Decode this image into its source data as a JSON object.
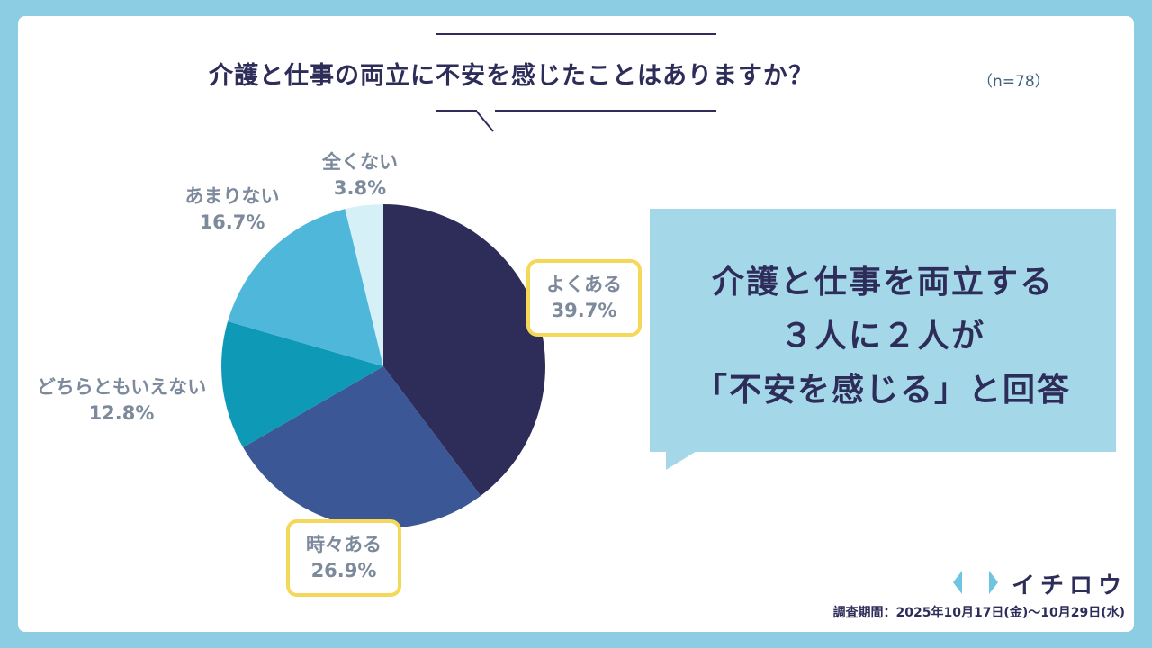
{
  "header": {
    "title": "介護と仕事の両立に不安を感じたことはありますか？",
    "sample_size": "（n=78）"
  },
  "chart_data": {
    "type": "pie",
    "categories": [
      "よくある",
      "時々ある",
      "どちらともいえない",
      "あまりない",
      "全くない"
    ],
    "values": [
      39.7,
      26.9,
      12.8,
      16.7,
      3.8
    ],
    "value_labels": [
      "39.7%",
      "26.9%",
      "12.8%",
      "16.7%",
      "3.8%"
    ],
    "colors": [
      "#2e2d5a",
      "#3b5796",
      "#0e9ab7",
      "#4fb8da",
      "#d6f0f8"
    ],
    "highlighted": [
      "よくある",
      "時々ある"
    ],
    "start": "12 o'clock",
    "direction": "clockwise"
  },
  "callout": {
    "lines": [
      "介護と仕事を両立する",
      "３人に２人が",
      "「不安を感じる」と回答"
    ]
  },
  "footer": {
    "brand": "イチロウ",
    "logo_icon": "chevrons-icon",
    "survey_period": "調査期間：2025年10月17日(金)〜10月29日(水)"
  }
}
